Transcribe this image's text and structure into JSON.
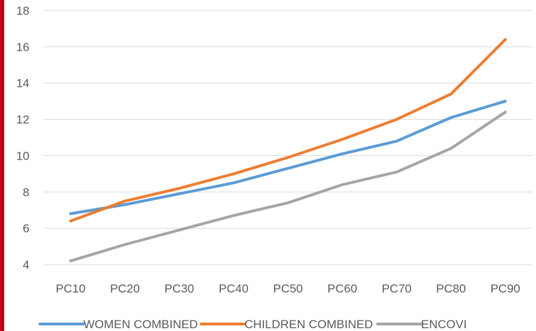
{
  "chart_data": {
    "type": "line",
    "categories": [
      "PC10",
      "PC20",
      "PC30",
      "PC40",
      "PC50",
      "PC60",
      "PC70",
      "PC80",
      "PC90"
    ],
    "ylim": [
      4,
      18
    ],
    "yticks": [
      4,
      6,
      8,
      10,
      12,
      14,
      16,
      18
    ],
    "grid": true,
    "legend_position": "bottom",
    "series": [
      {
        "name": "WOMEN COMBINED",
        "color": "#5b9bd5",
        "values": [
          6.8,
          7.3,
          7.9,
          8.5,
          9.3,
          10.1,
          10.8,
          12.1,
          13.0
        ]
      },
      {
        "name": "CHILDREN COMBINED",
        "color": "#ed7d31",
        "values": [
          6.4,
          7.5,
          8.2,
          9.0,
          9.9,
          10.9,
          12.0,
          13.4,
          16.4
        ]
      },
      {
        "name": "ENCOVI",
        "color": "#a5a5a5",
        "values": [
          4.2,
          5.1,
          5.9,
          6.7,
          7.4,
          8.4,
          9.1,
          10.4,
          12.4
        ]
      }
    ]
  },
  "colors": {
    "gridline": "#d9d9d9",
    "tick_text": "#595959",
    "edge_bar": "#c0001a"
  }
}
